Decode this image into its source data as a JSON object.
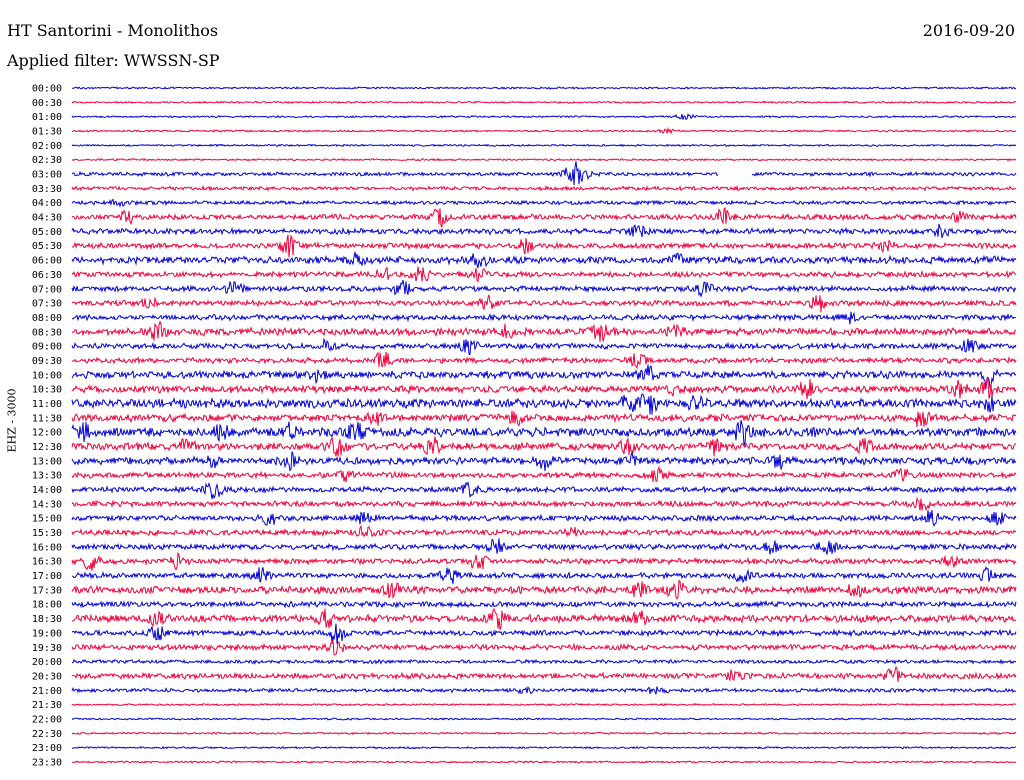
{
  "header": {
    "station": "HT Santorini - Monolithos",
    "date": "2016-09-20",
    "filter_text": "Applied filter: WWSSN-SP"
  },
  "colors": {
    "blue": "#0000d6",
    "red": "#f0003a",
    "background": "#ffffff",
    "text": "#000000"
  },
  "chart_data": {
    "type": "helicorder",
    "channel": "EHZ - 3000",
    "time_labels": [
      "00:00",
      "00:30",
      "01:00",
      "01:30",
      "02:00",
      "02:30",
      "03:00",
      "03:30",
      "04:00",
      "04:30",
      "05:00",
      "05:30",
      "06:00",
      "06:30",
      "07:00",
      "07:30",
      "08:00",
      "08:30",
      "09:00",
      "09:30",
      "10:00",
      "10:30",
      "11:00",
      "11:30",
      "12:00",
      "12:30",
      "13:00",
      "13:30",
      "14:00",
      "14:30",
      "15:00",
      "15:30",
      "16:00",
      "16:30",
      "17:00",
      "17:30",
      "18:00",
      "18:30",
      "19:00",
      "19:30",
      "20:00",
      "20:30",
      "21:00",
      "21:30",
      "22:00",
      "22:30",
      "23:00",
      "23:30"
    ],
    "line_colors": [
      "blue",
      "red"
    ],
    "amplitude": [
      1,
      1,
      1,
      1,
      1,
      1,
      2,
      2,
      2,
      3,
      3,
      3,
      4,
      3,
      3,
      3,
      3,
      4,
      3,
      3,
      4,
      4,
      5,
      4,
      5,
      4,
      4,
      3,
      3,
      3,
      3,
      3,
      3,
      3,
      3,
      4,
      3,
      4,
      3,
      3,
      2,
      3,
      2,
      1,
      1,
      1,
      1,
      1
    ],
    "events": [
      [],
      [],
      [
        {
          "t": 0.65,
          "a": 3
        }
      ],
      [
        {
          "t": 0.63,
          "a": 2
        }
      ],
      [],
      [],
      [
        {
          "t": 0.53,
          "a": 10
        },
        {
          "t": 0.54,
          "a": 7
        }
      ],
      [],
      [
        {
          "t": 0.05,
          "a": 4
        }
      ],
      [
        {
          "t": 0.06,
          "a": 5
        },
        {
          "t": 0.39,
          "a": 8
        },
        {
          "t": 0.69,
          "a": 8
        },
        {
          "t": 0.94,
          "a": 5
        }
      ],
      [
        {
          "t": 0.6,
          "a": 5
        },
        {
          "t": 0.92,
          "a": 5
        }
      ],
      [
        {
          "t": 0.23,
          "a": 9
        },
        {
          "t": 0.48,
          "a": 7
        },
        {
          "t": 0.86,
          "a": 7
        }
      ],
      [
        {
          "t": 0.3,
          "a": 5
        },
        {
          "t": 0.43,
          "a": 7
        },
        {
          "t": 0.64,
          "a": 6
        }
      ],
      [
        {
          "t": 0.33,
          "a": 6
        },
        {
          "t": 0.37,
          "a": 8
        },
        {
          "t": 0.43,
          "a": 6
        }
      ],
      [
        {
          "t": 0.17,
          "a": 6
        },
        {
          "t": 0.35,
          "a": 7
        },
        {
          "t": 0.67,
          "a": 6
        }
      ],
      [
        {
          "t": 0.08,
          "a": 5
        },
        {
          "t": 0.44,
          "a": 6
        },
        {
          "t": 0.79,
          "a": 8
        }
      ],
      [
        {
          "t": 0.82,
          "a": 6
        }
      ],
      [
        {
          "t": 0.09,
          "a": 8
        },
        {
          "t": 0.46,
          "a": 5
        },
        {
          "t": 0.56,
          "a": 8
        },
        {
          "t": 0.64,
          "a": 6
        }
      ],
      [
        {
          "t": 0.27,
          "a": 5
        },
        {
          "t": 0.42,
          "a": 7
        },
        {
          "t": 0.95,
          "a": 6
        }
      ],
      [
        {
          "t": 0.33,
          "a": 9
        },
        {
          "t": 0.6,
          "a": 6
        }
      ],
      [
        {
          "t": 0.26,
          "a": 6
        },
        {
          "t": 0.61,
          "a": 8
        },
        {
          "t": 0.97,
          "a": 11
        }
      ],
      [
        {
          "t": 0.64,
          "a": 6
        },
        {
          "t": 0.78,
          "a": 8
        },
        {
          "t": 0.94,
          "a": 7
        },
        {
          "t": 0.97,
          "a": 8
        }
      ],
      [
        {
          "t": 0.59,
          "a": 9
        },
        {
          "t": 0.61,
          "a": 11
        },
        {
          "t": 0.66,
          "a": 7
        },
        {
          "t": 0.97,
          "a": 7
        }
      ],
      [
        {
          "t": 0.32,
          "a": 6
        },
        {
          "t": 0.47,
          "a": 6
        },
        {
          "t": 0.9,
          "a": 8
        }
      ],
      [
        {
          "t": 0.01,
          "a": 9
        },
        {
          "t": 0.16,
          "a": 8
        },
        {
          "t": 0.23,
          "a": 7
        },
        {
          "t": 0.3,
          "a": 9
        },
        {
          "t": 0.71,
          "a": 10
        }
      ],
      [
        {
          "t": 0.12,
          "a": 7
        },
        {
          "t": 0.28,
          "a": 9
        },
        {
          "t": 0.38,
          "a": 9
        },
        {
          "t": 0.59,
          "a": 8
        },
        {
          "t": 0.68,
          "a": 7
        },
        {
          "t": 0.84,
          "a": 6
        }
      ],
      [
        {
          "t": 0.15,
          "a": 6
        },
        {
          "t": 0.23,
          "a": 7
        },
        {
          "t": 0.5,
          "a": 8
        },
        {
          "t": 0.59,
          "a": 6
        },
        {
          "t": 0.75,
          "a": 7
        }
      ],
      [
        {
          "t": 0.29,
          "a": 5
        },
        {
          "t": 0.62,
          "a": 6
        },
        {
          "t": 0.88,
          "a": 6
        }
      ],
      [
        {
          "t": 0.15,
          "a": 8
        },
        {
          "t": 0.42,
          "a": 6
        }
      ],
      [
        {
          "t": 0.9,
          "a": 5
        }
      ],
      [
        {
          "t": 0.21,
          "a": 6
        },
        {
          "t": 0.31,
          "a": 6
        },
        {
          "t": 0.91,
          "a": 7
        },
        {
          "t": 0.98,
          "a": 6
        }
      ],
      [
        {
          "t": 0.31,
          "a": 6
        },
        {
          "t": 0.53,
          "a": 3
        }
      ],
      [
        {
          "t": 0.45,
          "a": 8
        },
        {
          "t": 0.74,
          "a": 7
        },
        {
          "t": 0.8,
          "a": 9
        }
      ],
      [
        {
          "t": 0.02,
          "a": 8
        },
        {
          "t": 0.11,
          "a": 7
        },
        {
          "t": 0.43,
          "a": 9
        },
        {
          "t": 0.93,
          "a": 5
        }
      ],
      [
        {
          "t": 0.2,
          "a": 6
        },
        {
          "t": 0.4,
          "a": 8
        },
        {
          "t": 0.71,
          "a": 6
        },
        {
          "t": 0.97,
          "a": 8
        }
      ],
      [
        {
          "t": 0.34,
          "a": 7
        },
        {
          "t": 0.6,
          "a": 7
        },
        {
          "t": 0.64,
          "a": 8
        },
        {
          "t": 0.83,
          "a": 5
        }
      ],
      [],
      [
        {
          "t": 0.09,
          "a": 6
        },
        {
          "t": 0.27,
          "a": 9
        },
        {
          "t": 0.45,
          "a": 9
        },
        {
          "t": 0.6,
          "a": 6
        }
      ],
      [
        {
          "t": 0.09,
          "a": 8
        },
        {
          "t": 0.28,
          "a": 9
        }
      ],
      [
        {
          "t": 0.28,
          "a": 7
        }
      ],
      [],
      [
        {
          "t": 0.7,
          "a": 5
        },
        {
          "t": 0.87,
          "a": 7
        }
      ],
      [
        {
          "t": 0.48,
          "a": 3
        },
        {
          "t": 0.62,
          "a": 4
        }
      ],
      [],
      [],
      [],
      [],
      []
    ],
    "gaps": [
      {
        "row": 6,
        "start": 0.685,
        "end": 0.72
      }
    ]
  }
}
